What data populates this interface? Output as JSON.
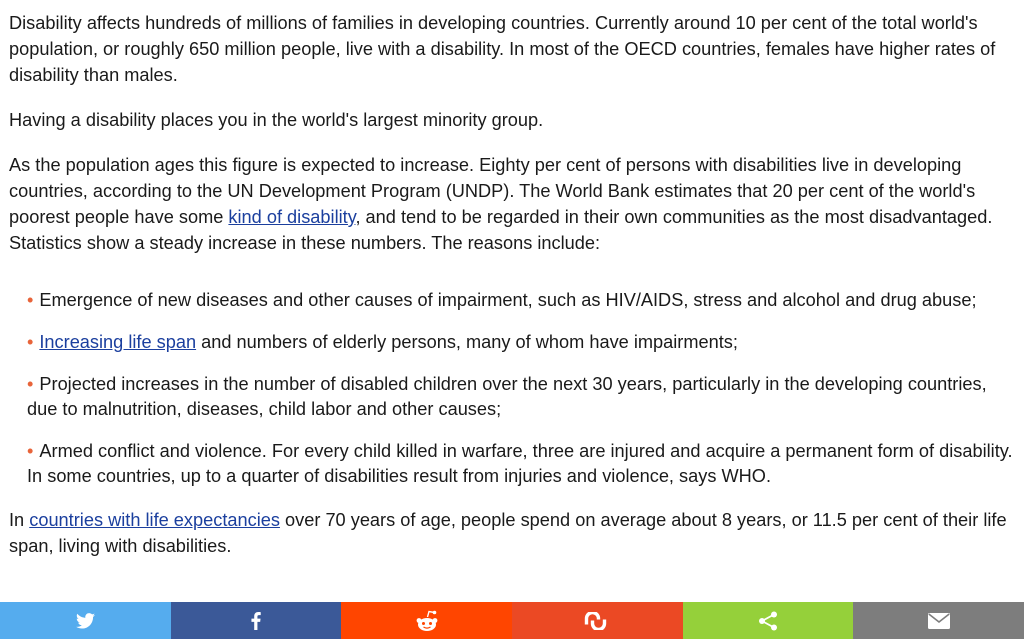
{
  "article": {
    "p1": "Disability affects hundreds of millions of families in developing countries. Currently around 10 per cent of the total world's population, or roughly 650 million people, live with a disability. In most of the OECD countries, females have higher rates of disability than males.",
    "p2": "Having a disability places you in the world's largest minority group.",
    "p3_before": "As the population ages this figure is expected to increase. Eighty per cent of persons with disabilities live in develop­ing countries, according to the UN Development Program (UNDP). The World Bank estimates that 20 per cent of the world's poorest people have some ",
    "p3_link": "kind of disability",
    "p3_after": ", and tend to be regarded in their own communities as the most disadvantaged. Statistics show a steady increase in these numbers. The reasons include:",
    "bullet_symbol": "•",
    "reasons": [
      {
        "text": "Emergence of new diseases and other causes of impairment, such as HIV/AIDS, stress and alcohol and drug abuse;"
      },
      {
        "link": "Increasing life span",
        "text": " and numbers of elderly persons, many of whom have impairments;"
      },
      {
        "text": "Projected increases in the number of disabled children over the next 30 years, particularly in the developing countries, due to malnutrition, diseases, child labor and other causes;"
      },
      {
        "text": "Armed conflict and violence. For every child killed in warfare, three are injured and acquire a permanent form of disability. In some countries, up to a quarter of disabilities result from injuries and violence, says WHO."
      }
    ],
    "p4_before": "In ",
    "p4_link": "countries with life expectancies",
    "p4_after": " over 70 years of age, people spend on average about 8 years, or 11.5 per cent of their life span, living with disabilities."
  },
  "share_bar": [
    {
      "name": "twitter",
      "icon": "twitter-icon",
      "color": "#55acee"
    },
    {
      "name": "facebook",
      "icon": "facebook-icon",
      "color": "#3b5998"
    },
    {
      "name": "reddit",
      "icon": "reddit-icon",
      "color": "#ff4500"
    },
    {
      "name": "stumbleupon",
      "icon": "stumbleupon-icon",
      "color": "#eb4924"
    },
    {
      "name": "share",
      "icon": "share-icon",
      "color": "#95d03a"
    },
    {
      "name": "email",
      "icon": "email-icon",
      "color": "#7d7d7d"
    }
  ],
  "colors": {
    "text": "#1a1a1a",
    "link": "#1b3f9e",
    "bullet": "#e8643a"
  }
}
